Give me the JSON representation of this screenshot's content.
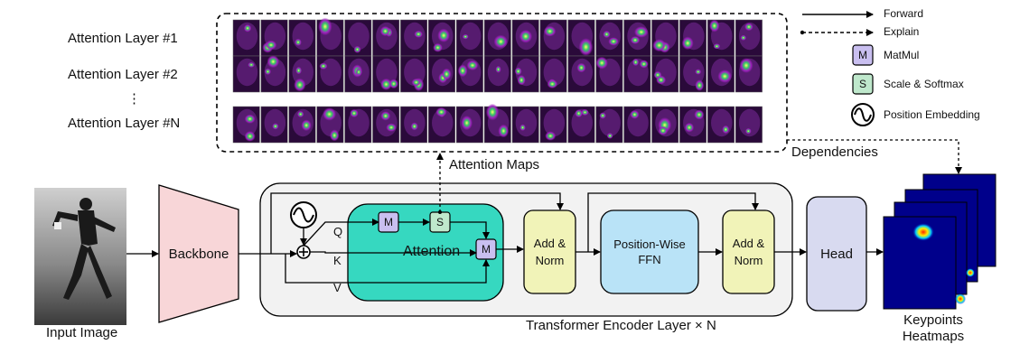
{
  "attention_layers": {
    "layer1": "Attention Layer #1",
    "layer2": "Attention Layer #2",
    "dots": "⋮",
    "layerN": "Attention Layer #N"
  },
  "legend": {
    "forward": "Forward",
    "explain": "Explain",
    "matmul_symbol": "M",
    "matmul": "MatMul",
    "softmax_symbol": "S",
    "softmax": "Scale & Softmax",
    "position_embedding": "Position Embedding"
  },
  "labels": {
    "attention_maps": "Attention Maps",
    "dependencies": "Dependencies",
    "input_image": "Input Image",
    "backbone": "Backbone",
    "encoder": "Transformer Encoder Layer × N",
    "q": "Q",
    "k": "K",
    "v": "V",
    "m": "M",
    "s": "S",
    "attention": "Attention",
    "add_norm_1": "Add & Norm",
    "ffn": "Position-Wise FFN",
    "add_norm_2": "Add & Norm",
    "head": "Head",
    "heatmaps": "Keypoints Heatmaps"
  },
  "colors": {
    "backbone": "#f8d6d8",
    "encoder_bg": "#f2f2f2",
    "attention": "#36d8c0",
    "matmul": "#c9bff0",
    "softmax": "#bfe8cc",
    "add_norm": "#f1f3b8",
    "ffn": "#b9e3f7",
    "head": "#d8daf0",
    "heatmap_bg": "#00008b",
    "attention_map_bg": "#2a0a3a"
  }
}
